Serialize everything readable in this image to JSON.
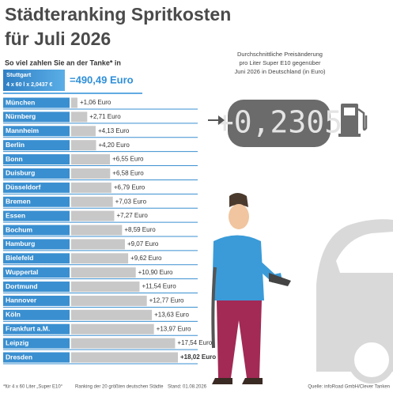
{
  "chart_data": {
    "type": "bar",
    "orientation": "horizontal",
    "title": "Städteranking Spritkosten",
    "title_line2": "für Juli 2026",
    "subtitle": "So viel zahlen Sie an der Tanke* in",
    "reference": {
      "city": "Stuttgart",
      "formula": "4 x 60 l x 2,0437 €",
      "total": "=490,49 Euro"
    },
    "change_note": [
      "Durchschnittliche Preisänderung",
      "pro Liter Super E10 gegenüber",
      "Juni 2026 in Deutschland (in Euro)"
    ],
    "change_value": "+0,2305",
    "categories": [
      "München",
      "Nürnberg",
      "Mannheim",
      "Berlin",
      "Bonn",
      "Duisburg",
      "Düsseldorf",
      "Bremen",
      "Essen",
      "Bochum",
      "Hamburg",
      "Bielefeld",
      "Wuppertal",
      "Dortmund",
      "Hannover",
      "Köln",
      "Frankfurt a.M.",
      "Leipzig",
      "Dresden"
    ],
    "values": [
      1.06,
      2.71,
      4.13,
      4.2,
      6.55,
      6.58,
      6.79,
      7.03,
      7.27,
      8.59,
      9.07,
      9.62,
      10.9,
      11.54,
      12.77,
      13.63,
      13.97,
      17.54,
      18.02
    ],
    "value_labels": [
      "+1,06 Euro",
      "+2,71 Euro",
      "+4,13 Euro",
      "+4,20 Euro",
      "+6,55 Euro",
      "+6,58 Euro",
      "+6,79 Euro",
      "+7,03 Euro",
      "+7,27 Euro",
      "+8,59 Euro",
      "+9,07 Euro",
      "+9,62 Euro",
      "+10,90 Euro",
      "+11,54 Euro",
      "+12,77 Euro",
      "+13,63 Euro",
      "+13,97 Euro",
      "+17,54 Euro",
      "+18,02 Euro"
    ],
    "color": "#c8c8c8",
    "label_color": "#3a8fd0",
    "footnotes": [
      "*für 4 x 60 Liter „Super E10“",
      "Ranking der 20 größten deutschen Städte",
      "Stand: 01.08.2026",
      "Quelle: infoRoad GmbH/Clever Tanken"
    ]
  }
}
